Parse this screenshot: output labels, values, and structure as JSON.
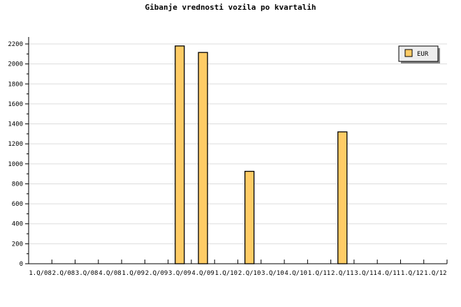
{
  "chart_data": {
    "type": "bar",
    "title": "Gibanje vrednosti vozila po kvartalih",
    "categories": [
      "1.Q/08",
      "2.Q/08",
      "3.Q/08",
      "4.Q/08",
      "1.Q/09",
      "2.Q/09",
      "3.Q/09",
      "4.Q/09",
      "1.Q/10",
      "2.Q/10",
      "3.Q/10",
      "4.Q/10",
      "1.Q/11",
      "2.Q/11",
      "3.Q/11",
      "4.Q/11",
      "1.Q/12",
      "1.Q/12"
    ],
    "series": [
      {
        "name": "EUR",
        "values": [
          0,
          0,
          0,
          0,
          0,
          0,
          2180,
          2115,
          0,
          925,
          0,
          0,
          0,
          1320,
          0,
          0,
          0,
          0
        ],
        "color": "#ffcc66"
      }
    ],
    "ylim": [
      0,
      2200
    ],
    "yticks": [
      0,
      200,
      400,
      600,
      800,
      1000,
      1200,
      1400,
      1600,
      1800,
      2000,
      2200
    ],
    "grid": true,
    "legend": "top-right"
  }
}
